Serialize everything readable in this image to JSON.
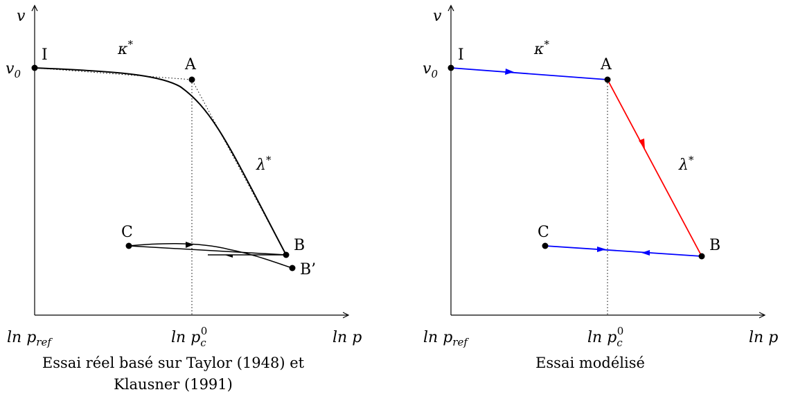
{
  "left_panel": {
    "y_axis_label": "v",
    "x_axis_label": "ln p",
    "v0_label": "v",
    "v0_sub": "0",
    "tick_pref": "ln p",
    "tick_pref_sub": "ref",
    "tick_pc": "ln p",
    "tick_pc_sub": "c",
    "tick_pc_sup": "0",
    "kappa_label": "κ",
    "kappa_sup": "*",
    "lambda_label": "λ",
    "lambda_sup": "*",
    "points": {
      "I": "I",
      "A": "A",
      "B": "B",
      "B_prime": "B’",
      "C": "C"
    },
    "caption_line1": "Essai réel basé sur Taylor (1948) et",
    "caption_line2": "Klausner (1991)"
  },
  "right_panel": {
    "y_axis_label": "v",
    "x_axis_label": "ln p",
    "v0_label": "v",
    "v0_sub": "0",
    "tick_pref": "ln p",
    "tick_pref_sub": "ref",
    "tick_pc": "ln p",
    "tick_pc_sub": "c",
    "tick_pc_sup": "0",
    "kappa_label": "κ",
    "kappa_sup": "*",
    "lambda_label": "λ",
    "lambda_sup": "*",
    "points": {
      "I": "I",
      "A": "A",
      "B": "B",
      "C": "C"
    },
    "caption": "Essai modélisé"
  },
  "colors": {
    "curve": "#000000",
    "unloading_path": "#0000ff",
    "loading_path": "#ff0000"
  }
}
